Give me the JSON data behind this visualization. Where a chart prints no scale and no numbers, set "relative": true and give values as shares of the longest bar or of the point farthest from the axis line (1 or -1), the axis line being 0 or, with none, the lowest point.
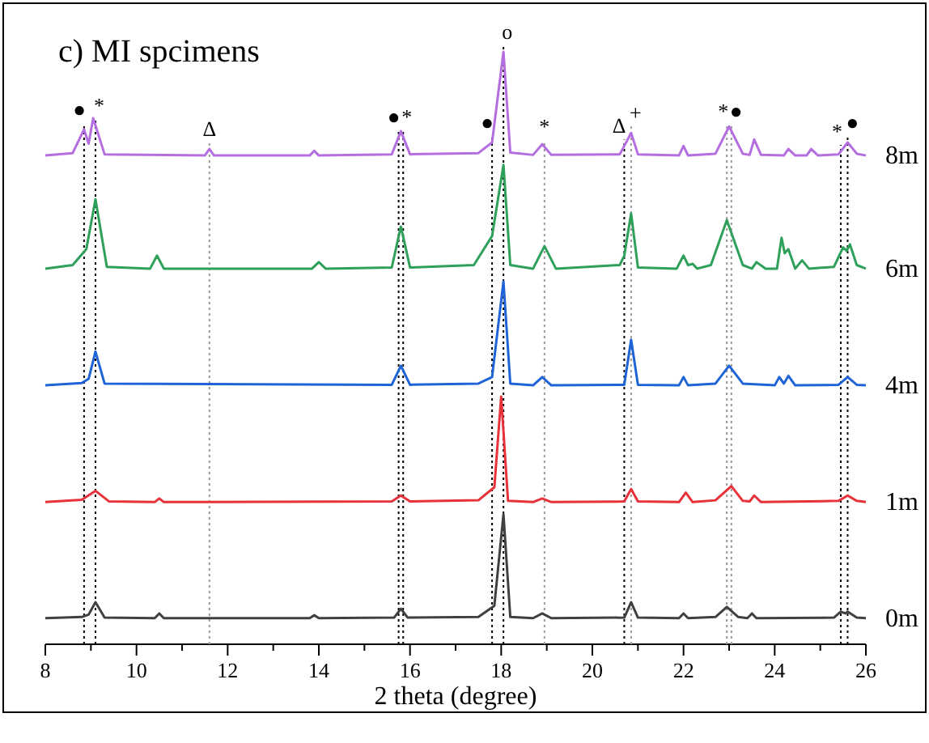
{
  "chart_data": {
    "type": "line",
    "title": "c)  MI spcimens",
    "xlabel": "2 theta (degree)",
    "relative": true,
    "tick_labels": "x",
    "legend": false,
    "grid": false,
    "marker": "none",
    "line_style": "solid",
    "xlim": [
      8,
      26
    ],
    "xticks": [
      8,
      {
        "value": 9,
        "label": null
      },
      10,
      {
        "value": 11,
        "label": null
      },
      12,
      {
        "value": 13,
        "label": null
      },
      14,
      {
        "value": 15,
        "label": null
      },
      16,
      {
        "value": 17,
        "label": null
      },
      18,
      {
        "value": 19,
        "label": null
      },
      20,
      {
        "value": 21,
        "label": null
      },
      22,
      {
        "value": 23,
        "label": null
      },
      24,
      {
        "value": 25,
        "label": null
      },
      26
    ],
    "series": [
      {
        "name": "0m",
        "color": "#404040",
        "x": [
          8,
          8.8,
          8.95,
          9.1,
          9.3,
          10.4,
          10.5,
          10.6,
          13.8,
          13.9,
          14.0,
          15.65,
          15.8,
          15.95,
          17.5,
          17.85,
          18.05,
          18.2,
          18.7,
          18.9,
          19.1,
          20.7,
          20.85,
          21.0,
          21.9,
          22.0,
          22.1,
          22.7,
          22.95,
          23.2,
          23.4,
          23.5,
          23.6,
          25.3,
          25.45,
          25.55,
          25.6,
          25.8,
          26
        ],
        "values": [
          0.044,
          0.046,
          0.05,
          0.071,
          0.045,
          0.044,
          0.052,
          0.044,
          0.044,
          0.049,
          0.044,
          0.045,
          0.06,
          0.045,
          0.046,
          0.065,
          0.219,
          0.046,
          0.044,
          0.052,
          0.044,
          0.045,
          0.071,
          0.045,
          0.044,
          0.052,
          0.044,
          0.046,
          0.063,
          0.046,
          0.044,
          0.052,
          0.044,
          0.045,
          0.055,
          0.052,
          0.055,
          0.045,
          0.044
        ]
      },
      {
        "name": "1m",
        "color": "#e8323a",
        "x": [
          8,
          8.8,
          9.1,
          9.4,
          10.4,
          10.5,
          10.6,
          15.6,
          15.8,
          16.0,
          17.5,
          17.85,
          18.0,
          18.15,
          18.7,
          18.9,
          19.1,
          20.7,
          20.85,
          21.0,
          21.9,
          22.05,
          22.2,
          22.7,
          23.05,
          23.3,
          23.45,
          23.55,
          23.7,
          25.4,
          25.6,
          25.8,
          26
        ],
        "values": [
          0.24,
          0.244,
          0.259,
          0.241,
          0.24,
          0.246,
          0.24,
          0.241,
          0.251,
          0.241,
          0.243,
          0.265,
          0.418,
          0.242,
          0.24,
          0.246,
          0.24,
          0.241,
          0.262,
          0.241,
          0.24,
          0.256,
          0.24,
          0.243,
          0.267,
          0.242,
          0.241,
          0.251,
          0.24,
          0.242,
          0.251,
          0.242,
          0.24
        ]
      },
      {
        "name": "4m",
        "color": "#1f64d6",
        "x": [
          8,
          8.8,
          8.95,
          9.1,
          9.3,
          15.6,
          15.8,
          16.0,
          17.5,
          17.8,
          18.05,
          18.2,
          18.7,
          18.9,
          19.1,
          20.7,
          20.85,
          21.0,
          21.9,
          22.0,
          22.1,
          22.7,
          23.0,
          23.3,
          24.0,
          24.1,
          24.2,
          24.3,
          24.45,
          25.4,
          25.6,
          25.8,
          26
        ],
        "values": [
          0.437,
          0.441,
          0.448,
          0.494,
          0.44,
          0.438,
          0.47,
          0.438,
          0.44,
          0.451,
          0.612,
          0.44,
          0.437,
          0.451,
          0.437,
          0.438,
          0.514,
          0.438,
          0.437,
          0.451,
          0.437,
          0.44,
          0.47,
          0.44,
          0.437,
          0.451,
          0.44,
          0.453,
          0.437,
          0.438,
          0.451,
          0.438,
          0.437
        ]
      },
      {
        "name": "6m",
        "color": "#2ea05a",
        "x": [
          8,
          8.6,
          8.9,
          9.1,
          9.35,
          10.3,
          10.45,
          10.6,
          13.85,
          14.0,
          14.15,
          15.6,
          15.8,
          16.0,
          17.4,
          17.8,
          18.05,
          18.2,
          18.7,
          18.95,
          19.2,
          20.6,
          20.7,
          20.85,
          21.0,
          21.85,
          22.0,
          22.1,
          22.2,
          22.3,
          22.6,
          22.95,
          23.3,
          23.5,
          23.6,
          23.8,
          24.05,
          24.15,
          24.22,
          24.3,
          24.45,
          24.6,
          24.75,
          25.3,
          25.5,
          25.58,
          25.65,
          25.8,
          26
        ],
        "values": [
          0.634,
          0.64,
          0.667,
          0.751,
          0.637,
          0.634,
          0.656,
          0.634,
          0.634,
          0.645,
          0.634,
          0.636,
          0.705,
          0.636,
          0.64,
          0.689,
          0.809,
          0.64,
          0.634,
          0.672,
          0.634,
          0.64,
          0.656,
          0.727,
          0.636,
          0.634,
          0.656,
          0.64,
          0.642,
          0.634,
          0.64,
          0.716,
          0.64,
          0.634,
          0.645,
          0.634,
          0.634,
          0.686,
          0.66,
          0.667,
          0.634,
          0.648,
          0.634,
          0.637,
          0.67,
          0.664,
          0.675,
          0.64,
          0.634
        ]
      },
      {
        "name": "8m",
        "color": "#b46ee0",
        "x": [
          8,
          8.6,
          8.85,
          8.95,
          9.05,
          9.3,
          11.5,
          11.6,
          11.7,
          13.8,
          13.9,
          14.0,
          15.6,
          15.8,
          16.0,
          17.5,
          17.8,
          18.05,
          18.2,
          18.7,
          18.9,
          19.1,
          20.6,
          20.7,
          20.85,
          21.0,
          21.9,
          22.0,
          22.1,
          22.7,
          23.0,
          23.3,
          23.45,
          23.55,
          23.7,
          24.2,
          24.3,
          24.45,
          24.7,
          24.8,
          24.95,
          25.4,
          25.6,
          25.8,
          26
        ],
        "values": [
          0.825,
          0.829,
          0.869,
          0.845,
          0.888,
          0.827,
          0.825,
          0.836,
          0.825,
          0.825,
          0.833,
          0.825,
          0.827,
          0.866,
          0.827,
          0.829,
          0.847,
          1,
          0.83,
          0.826,
          0.844,
          0.826,
          0.827,
          0.841,
          0.863,
          0.827,
          0.825,
          0.841,
          0.825,
          0.828,
          0.874,
          0.828,
          0.826,
          0.852,
          0.826,
          0.825,
          0.836,
          0.825,
          0.825,
          0.836,
          0.825,
          0.827,
          0.847,
          0.828,
          0.825
        ]
      }
    ],
    "ref_lines": [
      {
        "axis": "x",
        "value": 8.85,
        "label": "●",
        "color": "#000000",
        "line_style": "dotted"
      },
      {
        "axis": "x",
        "value": 9.1,
        "label": "*",
        "color": "#000000",
        "line_style": "dotted"
      },
      {
        "axis": "x",
        "value": 11.6,
        "label": "Δ",
        "color": "#999999",
        "line_style": "dotted"
      },
      {
        "axis": "x",
        "value": 15.75,
        "label": "●",
        "color": "#000000",
        "line_style": "dotted"
      },
      {
        "axis": "x",
        "value": 15.85,
        "label": "*",
        "color": "#000000",
        "line_style": "dotted"
      },
      {
        "axis": "x",
        "value": 17.8,
        "label": "●",
        "color": "#000000",
        "line_style": "dotted"
      },
      {
        "axis": "x",
        "value": 18.05,
        "label": "o",
        "color": "#000000",
        "line_style": "dotted"
      },
      {
        "axis": "x",
        "value": 18.95,
        "label": "*",
        "color": "#999999",
        "line_style": "dotted"
      },
      {
        "axis": "x",
        "value": 20.7,
        "label": "Δ",
        "color": "#000000",
        "line_style": "dotted"
      },
      {
        "axis": "x",
        "value": 20.85,
        "label": "+",
        "color": "#999999",
        "line_style": "dotted"
      },
      {
        "axis": "x",
        "value": 22.95,
        "label": "*",
        "color": "#999999",
        "line_style": "dotted"
      },
      {
        "axis": "x",
        "value": 23.05,
        "label": "●",
        "color": "#999999",
        "line_style": "dotted"
      },
      {
        "axis": "x",
        "value": 25.45,
        "label": "*",
        "color": "#000000",
        "line_style": "dotted"
      },
      {
        "axis": "x",
        "value": 25.6,
        "label": "●",
        "color": "#000000",
        "line_style": "dotted"
      }
    ]
  }
}
